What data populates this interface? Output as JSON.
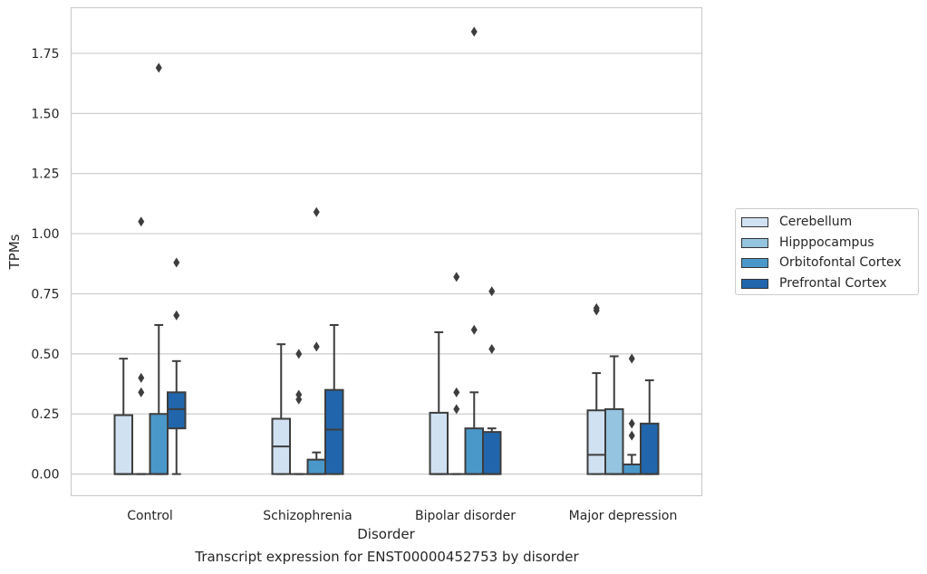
{
  "chart_data": {
    "type": "boxplot",
    "xlabel": "Disorder",
    "ylabel": "TPMs",
    "ylim": [
      -0.09,
      1.94
    ],
    "yticks": [
      "0.00",
      "0.25",
      "0.50",
      "0.75",
      "1.00",
      "1.25",
      "1.50",
      "1.75"
    ],
    "grid": true,
    "legend_position": "right",
    "categories": [
      "Control",
      "Schizophrenia",
      "Bipolar disorder",
      "Major depression"
    ],
    "series": [
      {
        "name": "Cerebellum",
        "color": "#d0e1f2",
        "boxes": [
          {
            "q1": 0.0,
            "median": 0.0,
            "q3": 0.245,
            "whislo": 0.0,
            "whishi": 0.48,
            "fliers": []
          },
          {
            "q1": 0.0,
            "median": 0.115,
            "q3": 0.23,
            "whislo": 0.0,
            "whishi": 0.54,
            "fliers": []
          },
          {
            "q1": 0.0,
            "median": 0.0,
            "q3": 0.255,
            "whislo": 0.0,
            "whishi": 0.59,
            "fliers": []
          },
          {
            "q1": 0.0,
            "median": 0.08,
            "q3": 0.265,
            "whislo": 0.0,
            "whishi": 0.42,
            "fliers": [
              0.68,
              0.69
            ]
          }
        ]
      },
      {
        "name": "Hipppocampus",
        "color": "#94c4df",
        "boxes": [
          {
            "q1": 0.0,
            "median": 0.0,
            "q3": 0.0,
            "whislo": 0.0,
            "whishi": 0.0,
            "fliers": [
              0.34,
              0.4,
              1.05
            ]
          },
          {
            "q1": 0.0,
            "median": 0.0,
            "q3": 0.0,
            "whislo": 0.0,
            "whishi": 0.0,
            "fliers": [
              0.31,
              0.33,
              0.5
            ]
          },
          {
            "q1": 0.0,
            "median": 0.0,
            "q3": 0.0,
            "whislo": 0.0,
            "whishi": 0.0,
            "fliers": [
              0.27,
              0.34,
              0.82
            ]
          },
          {
            "q1": 0.0,
            "median": 0.0,
            "q3": 0.27,
            "whislo": 0.0,
            "whishi": 0.49,
            "fliers": []
          }
        ]
      },
      {
        "name": "Orbitofontal Cortex",
        "color": "#4a98c9",
        "boxes": [
          {
            "q1": 0.0,
            "median": 0.0,
            "q3": 0.25,
            "whislo": 0.0,
            "whishi": 0.62,
            "fliers": [
              1.69
            ]
          },
          {
            "q1": 0.0,
            "median": 0.0,
            "q3": 0.06,
            "whislo": 0.0,
            "whishi": 0.09,
            "fliers": [
              0.53,
              1.09
            ]
          },
          {
            "q1": 0.0,
            "median": 0.0,
            "q3": 0.19,
            "whislo": 0.0,
            "whishi": 0.34,
            "fliers": [
              0.6,
              1.84
            ]
          },
          {
            "q1": 0.0,
            "median": 0.0,
            "q3": 0.04,
            "whislo": 0.0,
            "whishi": 0.08,
            "fliers": [
              0.16,
              0.21,
              0.48
            ]
          }
        ]
      },
      {
        "name": "Prefrontal Cortex",
        "color": "#2166ac",
        "boxes": [
          {
            "q1": 0.19,
            "median": 0.27,
            "q3": 0.34,
            "whislo": 0.0,
            "whishi": 0.47,
            "fliers": [
              0.66,
              0.88
            ]
          },
          {
            "q1": 0.0,
            "median": 0.185,
            "q3": 0.35,
            "whislo": 0.0,
            "whishi": 0.62,
            "fliers": []
          },
          {
            "q1": 0.0,
            "median": 0.0,
            "q3": 0.175,
            "whislo": 0.0,
            "whishi": 0.19,
            "fliers": [
              0.52,
              0.76
            ]
          },
          {
            "q1": 0.0,
            "median": 0.0,
            "q3": 0.21,
            "whislo": 0.0,
            "whishi": 0.39,
            "fliers": []
          }
        ]
      }
    ],
    "caption": "Transcript expression for ENST00000452753 by disorder"
  }
}
